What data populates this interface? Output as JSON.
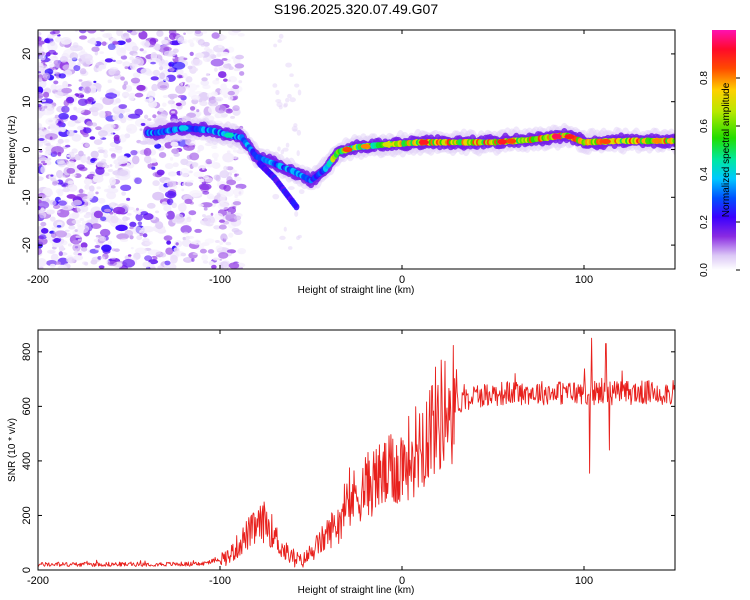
{
  "title": "S196.2025.320.07.49.G07",
  "chart_data": [
    {
      "type": "heatmap",
      "name": "spectrogram",
      "xlabel": "Height of straight line (km)",
      "ylabel": "Frequency (Hz)",
      "xlim": [
        -200,
        150
      ],
      "ylim": [
        -25,
        25
      ],
      "xticks": [
        -200,
        -100,
        0,
        100
      ],
      "yticks": [
        -20,
        -10,
        0,
        10,
        20
      ],
      "colorbar": {
        "label": "Normalized spectral amplitude",
        "range": [
          0,
          1
        ],
        "ticks": [
          0.0,
          0.2,
          0.4,
          0.6,
          0.8
        ]
      },
      "ridge": [
        {
          "x": -135,
          "f": 3.5
        },
        {
          "x": -120,
          "f": 4.5
        },
        {
          "x": -105,
          "f": 4.0
        },
        {
          "x": -95,
          "f": 3.0
        },
        {
          "x": -88,
          "f": 2.5
        },
        {
          "x": -80,
          "f": -1.5
        },
        {
          "x": -70,
          "f": -3.0
        },
        {
          "x": -60,
          "f": -4.5
        },
        {
          "x": -50,
          "f": -6.5
        },
        {
          "x": -42,
          "f": -4.0
        },
        {
          "x": -35,
          "f": -0.5
        },
        {
          "x": -25,
          "f": 0.5
        },
        {
          "x": -10,
          "f": 1.0
        },
        {
          "x": 10,
          "f": 1.5
        },
        {
          "x": 30,
          "f": 1.5
        },
        {
          "x": 50,
          "f": 1.5
        },
        {
          "x": 70,
          "f": 2.0
        },
        {
          "x": 90,
          "f": 3.0
        },
        {
          "x": 100,
          "f": 1.5
        },
        {
          "x": 120,
          "f": 1.8
        },
        {
          "x": 150,
          "f": 1.8
        }
      ],
      "secondary_branch": [
        {
          "x": -78,
          "f": -3
        },
        {
          "x": -70,
          "f": -6
        },
        {
          "x": -62,
          "f": -10
        },
        {
          "x": -58,
          "f": -12
        }
      ]
    },
    {
      "type": "line",
      "name": "snr",
      "color": "#e8201c",
      "xlabel": "Height of straight line (km)",
      "ylabel": "SNR (10 * v/v)",
      "xlim": [
        -200,
        150
      ],
      "ylim": [
        0,
        880
      ],
      "xticks": [
        -200,
        -100,
        0,
        100
      ],
      "yticks": [
        0,
        200,
        400,
        600,
        800
      ],
      "envelope": {
        "x": [
          -200,
          -110,
          -95,
          -85,
          -75,
          -65,
          -55,
          -45,
          -35,
          -25,
          -15,
          -5,
          5,
          15,
          25,
          40,
          60,
          100,
          150
        ],
        "y": [
          20,
          22,
          50,
          130,
          180,
          70,
          30,
          100,
          180,
          280,
          330,
          360,
          420,
          520,
          600,
          640,
          650,
          650,
          650
        ]
      },
      "spikes": [
        {
          "x": 103,
          "y": 355
        },
        {
          "x": 104,
          "y": 850
        },
        {
          "x": 112,
          "y": 830
        },
        {
          "x": 114,
          "y": 440
        }
      ]
    }
  ]
}
